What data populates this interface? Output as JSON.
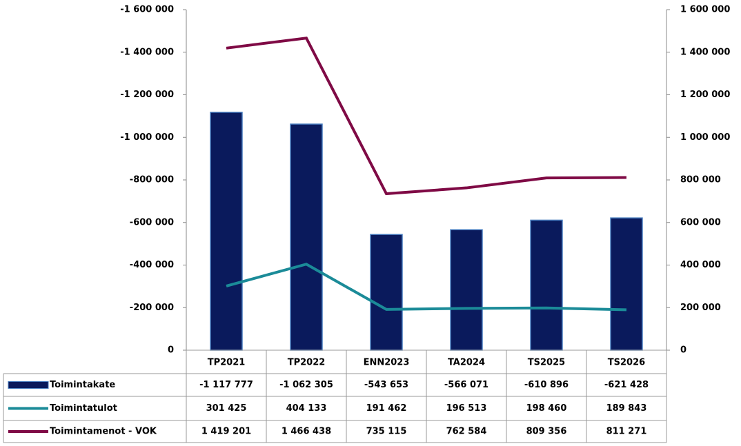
{
  "chart_data": {
    "type": "bar_line_table",
    "categories": [
      "TP2021",
      "TP2022",
      "ENN2023",
      "TA2024",
      "TS2025",
      "TS2026"
    ],
    "series": [
      {
        "name": "Toimintakate",
        "type": "bar",
        "color": "#0a1a5c",
        "axis": "y",
        "values": [
          -1117777,
          -1062305,
          -543653,
          -566071,
          -610896,
          -621428
        ],
        "value_labels": [
          "-1 117 777",
          "-1 062 305",
          "-543 653",
          "-566 071",
          "-610 896",
          "-621 428"
        ]
      },
      {
        "name": "Toimintatulot",
        "type": "line",
        "color": "#1b8b98",
        "axis": "y2",
        "values": [
          301425,
          404133,
          191462,
          196513,
          198460,
          189843
        ],
        "value_labels": [
          "301 425",
          "404 133",
          "191 462",
          "196 513",
          "198 460",
          "189 843"
        ]
      },
      {
        "name": "Toimintamenot - VOK",
        "type": "line",
        "color": "#7f0a45",
        "axis": "y2",
        "values": [
          1419201,
          1466438,
          735115,
          762584,
          809356,
          811271
        ],
        "value_labels": [
          "1 419 201",
          "1 466 438",
          "735 115",
          "762 584",
          "809 356",
          "811 271"
        ]
      }
    ],
    "ylim": [
      0,
      -1600000
    ],
    "yticks": [
      0,
      {
        "value": -200000,
        "label": "-200 000"
      },
      {
        "value": -400000,
        "label": "-400 000"
      },
      {
        "value": -600000,
        "label": "-600 000"
      },
      {
        "value": -800000,
        "label": "-800 000"
      },
      {
        "value": -1000000,
        "label": "-1 000 000"
      },
      {
        "value": -1200000,
        "label": "-1 200 000"
      },
      {
        "value": -1400000,
        "label": "-1 400 000"
      },
      {
        "value": -1600000,
        "label": "-1 600 000"
      }
    ],
    "y2lim": [
      0,
      1600000
    ],
    "y2ticks": [
      0,
      {
        "value": 200000,
        "label": "200 000"
      },
      {
        "value": 400000,
        "label": "400 000"
      },
      {
        "value": 600000,
        "label": "600 000"
      },
      {
        "value": 800000,
        "label": "800 000"
      },
      {
        "value": 1000000,
        "label": "1 000 000"
      },
      {
        "value": 1200000,
        "label": "1 200 000"
      },
      {
        "value": 1400000,
        "label": "1 400 000"
      },
      {
        "value": 1600000,
        "label": "1 600 000"
      }
    ]
  }
}
